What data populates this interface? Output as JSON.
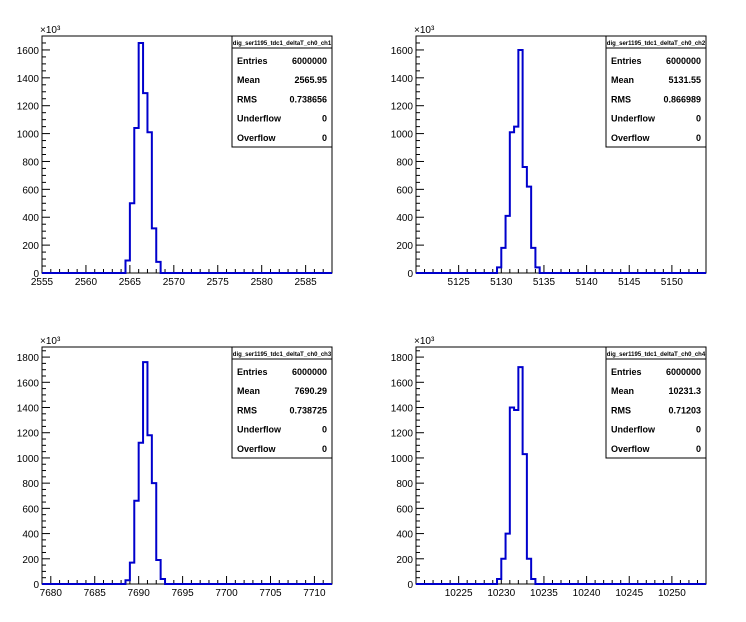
{
  "chart_data": [
    {
      "type": "bar",
      "title": "",
      "stats": {
        "title": "dig_ser1195_tdc1_deltaT_ch0_ch1",
        "entries": "6000000",
        "mean": "2565.95",
        "rms": "0.738656",
        "underflow": "0",
        "overflow": "0"
      },
      "y_exponent": "×10³",
      "xlim": [
        2555,
        2588
      ],
      "ylim": [
        0,
        1700
      ],
      "xticks": [
        2555,
        2560,
        2565,
        2570,
        2575,
        2580,
        2585
      ],
      "yticks": [
        0,
        200,
        400,
        600,
        800,
        1000,
        1200,
        1400,
        1600
      ],
      "bins": {
        "x0": 2564.5,
        "width": 0.5,
        "values": [
          90,
          500,
          1040,
          1650,
          1290,
          1010,
          320,
          80
        ]
      }
    },
    {
      "type": "bar",
      "title": "",
      "stats": {
        "title": "dig_ser1195_tdc1_deltaT_ch0_ch2",
        "entries": "6000000",
        "mean": "5131.55",
        "rms": "0.866989",
        "underflow": "0",
        "overflow": "0"
      },
      "y_exponent": "×10³",
      "xlim": [
        5120,
        5154
      ],
      "ylim": [
        0,
        1700
      ],
      "xticks": [
        5125,
        5130,
        5135,
        5140,
        5145,
        5150
      ],
      "yticks": [
        0,
        200,
        400,
        600,
        800,
        1000,
        1200,
        1400,
        1600
      ],
      "bins": {
        "x0": 5129.5,
        "width": 0.5,
        "values": [
          40,
          180,
          410,
          1010,
          1050,
          1600,
          760,
          620,
          180,
          40
        ]
      }
    },
    {
      "type": "bar",
      "title": "",
      "stats": {
        "title": "dig_ser1195_tdc1_deltaT_ch0_ch3",
        "entries": "6000000",
        "mean": "7690.29",
        "rms": "0.738725",
        "underflow": "0",
        "overflow": "0"
      },
      "y_exponent": "×10³",
      "xlim": [
        7679,
        7712
      ],
      "ylim": [
        0,
        1880
      ],
      "xticks": [
        7680,
        7685,
        7690,
        7695,
        7700,
        7705,
        7710
      ],
      "yticks": [
        0,
        200,
        400,
        600,
        800,
        1000,
        1200,
        1400,
        1600,
        1800
      ],
      "bins": {
        "x0": 7688.5,
        "width": 0.5,
        "values": [
          30,
          170,
          660,
          1120,
          1760,
          1180,
          800,
          190,
          40
        ]
      }
    },
    {
      "type": "bar",
      "title": "",
      "stats": {
        "title": "dig_ser1195_tdc1_deltaT_ch0_ch4",
        "entries": "6000000",
        "mean": "10231.3",
        "rms": "0.71203",
        "underflow": "0",
        "overflow": "0"
      },
      "y_exponent": "×10³",
      "xlim": [
        10220,
        10254
      ],
      "ylim": [
        0,
        1880
      ],
      "xticks": [
        10225,
        10230,
        10235,
        10240,
        10245,
        10250
      ],
      "yticks": [
        0,
        200,
        400,
        600,
        800,
        1000,
        1200,
        1400,
        1600,
        1800
      ],
      "bins": {
        "x0": 10229.5,
        "width": 0.5,
        "values": [
          40,
          200,
          400,
          1400,
          1380,
          1720,
          1030,
          200,
          40
        ]
      }
    }
  ],
  "stats_labels": {
    "entries": "Entries",
    "mean": "Mean",
    "rms": "RMS",
    "underflow": "Underflow",
    "overflow": "Overflow"
  },
  "colors": {
    "histogram": "#0000cc",
    "axis": "#000000",
    "background": "#ffffff"
  }
}
